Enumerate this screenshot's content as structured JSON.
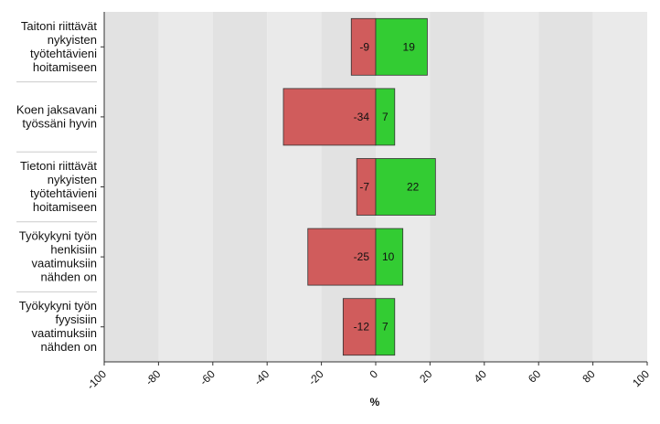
{
  "chart_data": {
    "type": "bar",
    "orientation": "horizontal",
    "stacked": "diverging",
    "categories": [
      [
        "Taitoni riittävät",
        "nykyisten",
        "työtehtävieni",
        "hoitamiseen"
      ],
      [
        "Koen jaksavani",
        "työssäni hyvin"
      ],
      [
        "Tietoni riittävät",
        "nykyisten",
        "työtehtävieni",
        "hoitamiseen"
      ],
      [
        "Työkykyni työn",
        "henkisiin",
        "vaatimuksiin",
        "nähden on"
      ],
      [
        "Työkykyni työn",
        "fyysisiin",
        "vaatimuksiin",
        "nähden on"
      ]
    ],
    "series": [
      {
        "values": [
          -9,
          -34,
          -7,
          -25,
          -12
        ],
        "color": "#d05c5c"
      },
      {
        "values": [
          19,
          7,
          22,
          10,
          7
        ],
        "color": "#33cc33"
      }
    ],
    "data_labels": [
      [
        "-9",
        "-34",
        "-7",
        "-25",
        "-12"
      ],
      [
        "19",
        "7",
        "22",
        "10",
        "7"
      ]
    ],
    "xlim": [
      -100,
      100
    ],
    "xticks": [
      "-100",
      "-80",
      "-60",
      "-40",
      "-20",
      "0",
      "20",
      "40",
      "60",
      "80",
      "100"
    ],
    "xlabel": "%",
    "ylabel": "",
    "title": "",
    "grid": "alternating vertical bands",
    "colors": {
      "band_dark": "#e2e2e2",
      "band_light": "#eaeaea",
      "bar_border": "#333333",
      "axis": "#333333"
    }
  }
}
